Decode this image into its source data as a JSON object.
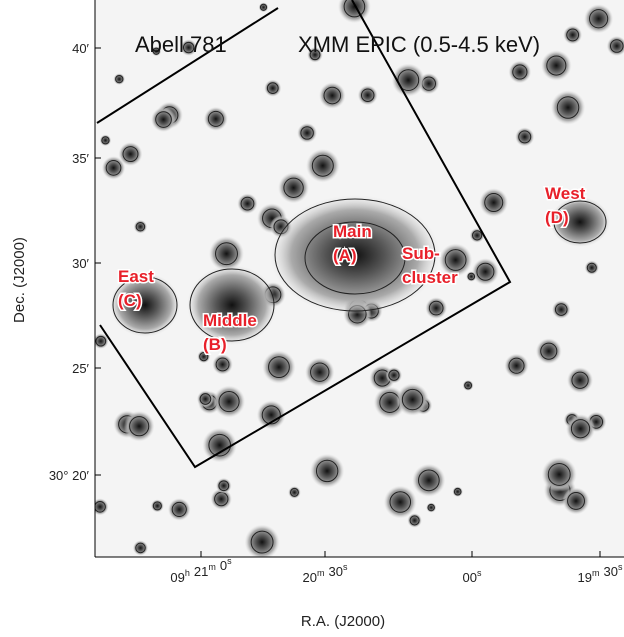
{
  "title": {
    "object": "Abell 781",
    "instrument": "XMM EPIC (0.5-4.5 keV)"
  },
  "axes": {
    "x_label": "R.A. (J2000)",
    "y_label": "Dec. (J2000)",
    "x_ticks": [
      [
        [
          "09",
          "h"
        ],
        [
          "21",
          "m"
        ],
        [
          "0",
          "s"
        ]
      ],
      [
        [
          "20",
          "m"
        ],
        [
          "30",
          "s"
        ]
      ],
      [
        [
          "00",
          "s"
        ]
      ],
      [
        [
          "19",
          "m"
        ],
        [
          "30",
          "s"
        ]
      ]
    ],
    "y_ticks": [
      "40′",
      "35′",
      "30′",
      "25′",
      "30° 20′"
    ]
  },
  "labels": [
    {
      "lines": [
        "East",
        "(C)"
      ]
    },
    {
      "lines": [
        "Middle",
        "(B)"
      ]
    },
    {
      "lines": [
        "Main",
        "(A)"
      ]
    },
    {
      "lines": [
        "Sub-",
        "cluster"
      ]
    },
    {
      "lines": [
        "West",
        "(D)"
      ]
    }
  ]
}
